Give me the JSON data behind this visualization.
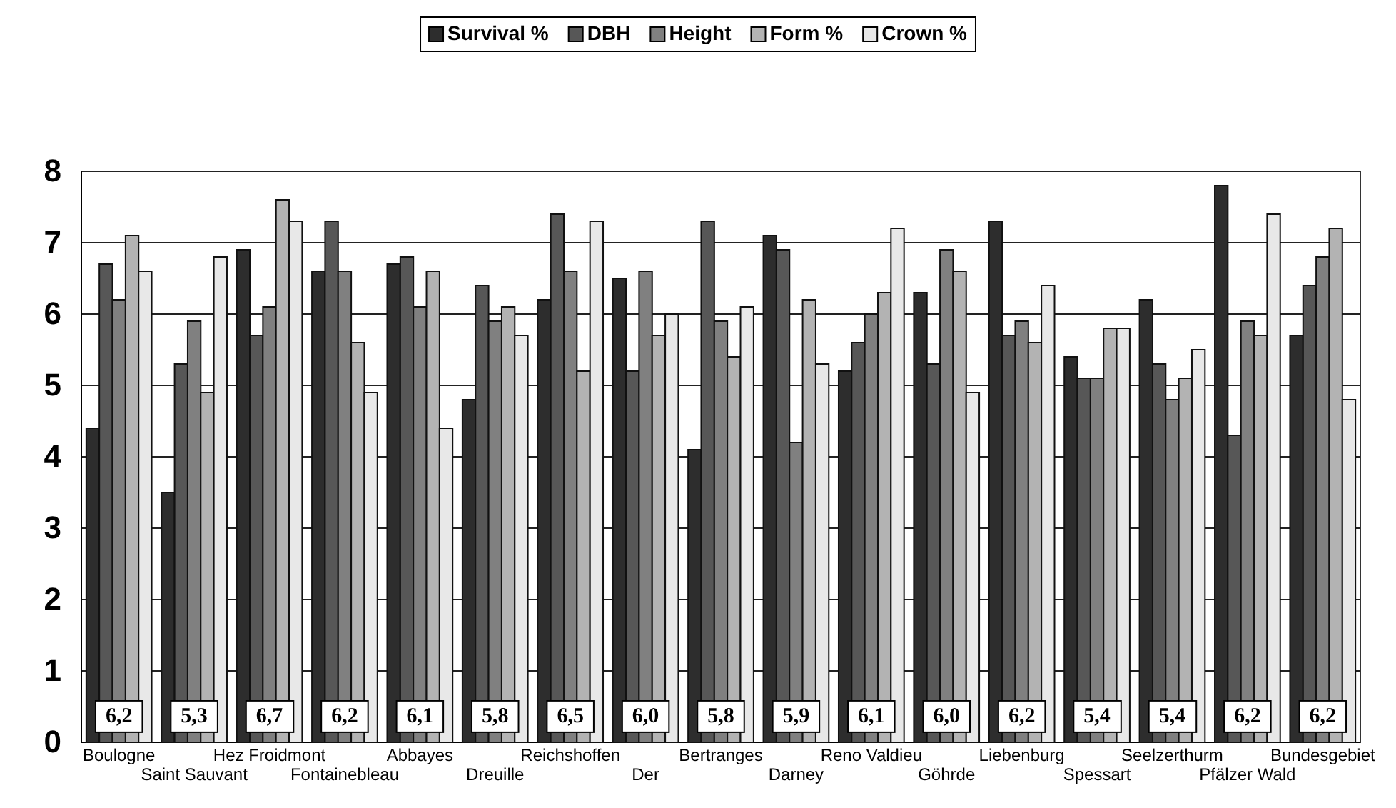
{
  "chart_data": {
    "type": "bar",
    "categories": [
      "Boulogne",
      "Saint Sauvant",
      "Hez Froidmont",
      "Fontainebleau",
      "Abbayes",
      "Dreuille",
      "Reichshoffen",
      "Der",
      "Bertranges",
      "Darney",
      "Reno Valdieu",
      "Göhrde",
      "Liebenburg",
      "Spessart",
      "Seelzerthurm",
      "Pfälzer Wald",
      "Bundesgebiet"
    ],
    "series": [
      {
        "name": "Survival %",
        "color": "#2d2d2d",
        "values": [
          4.4,
          3.5,
          6.9,
          6.6,
          6.7,
          4.8,
          6.2,
          6.5,
          4.1,
          7.1,
          5.2,
          6.3,
          7.3,
          5.4,
          6.2,
          7.8,
          5.7
        ]
      },
      {
        "name": "DBH",
        "color": "#575757",
        "values": [
          6.7,
          5.3,
          5.7,
          7.3,
          6.8,
          6.4,
          7.4,
          5.2,
          7.3,
          6.9,
          5.6,
          5.3,
          5.7,
          5.1,
          5.3,
          4.3,
          6.4
        ]
      },
      {
        "name": "Height",
        "color": "#808080",
        "values": [
          6.2,
          5.9,
          6.1,
          6.6,
          6.1,
          5.9,
          6.6,
          6.6,
          5.9,
          4.2,
          6.0,
          6.9,
          5.9,
          5.1,
          4.8,
          5.9,
          6.8
        ]
      },
      {
        "name": "Form %",
        "color": "#b3b3b3",
        "values": [
          7.1,
          4.9,
          7.6,
          5.6,
          6.6,
          6.1,
          5.2,
          5.7,
          5.4,
          6.2,
          6.3,
          6.6,
          5.6,
          5.8,
          5.1,
          5.7,
          7.2
        ]
      },
      {
        "name": "Crown %",
        "color": "#e8e8e8",
        "values": [
          6.6,
          6.8,
          7.3,
          4.9,
          4.4,
          5.7,
          7.3,
          6.0,
          6.1,
          5.3,
          7.2,
          4.9,
          6.4,
          5.8,
          5.5,
          7.4,
          4.8
        ]
      }
    ],
    "annotations": [
      {
        "text": "6,2",
        "x": "Boulogne",
        "y": 0.35
      },
      {
        "text": "5,3",
        "x": "Saint Sauvant",
        "y": 0.35
      },
      {
        "text": "6,7",
        "x": "Hez Froidmont",
        "y": 0.35
      },
      {
        "text": "6,2",
        "x": "Fontainebleau",
        "y": 0.35
      },
      {
        "text": "6,1",
        "x": "Abbayes",
        "y": 0.35
      },
      {
        "text": "5,8",
        "x": "Dreuille",
        "y": 0.35
      },
      {
        "text": "6,5",
        "x": "Reichshoffen",
        "y": 0.35
      },
      {
        "text": "6,0",
        "x": "Der",
        "y": 0.35
      },
      {
        "text": "5,8",
        "x": "Bertranges",
        "y": 0.35
      },
      {
        "text": "5,9",
        "x": "Darney",
        "y": 0.35
      },
      {
        "text": "6,1",
        "x": "Reno Valdieu",
        "y": 0.35
      },
      {
        "text": "6,0",
        "x": "Göhrde",
        "y": 0.35
      },
      {
        "text": "6,2",
        "x": "Liebenburg",
        "y": 0.35
      },
      {
        "text": "5,4",
        "x": "Spessart",
        "y": 0.35
      },
      {
        "text": "5,4",
        "x": "Seelzerthurm",
        "y": 0.35
      },
      {
        "text": "6,2",
        "x": "Pfälzer Wald",
        "y": 0.35
      },
      {
        "text": "6,2",
        "x": "Bundesgebiet",
        "y": 0.35
      }
    ],
    "ylim": [
      0,
      8
    ],
    "yticks": [
      0,
      1,
      2,
      3,
      4,
      5,
      6,
      7,
      8
    ],
    "grid": "y",
    "legend": "top"
  }
}
